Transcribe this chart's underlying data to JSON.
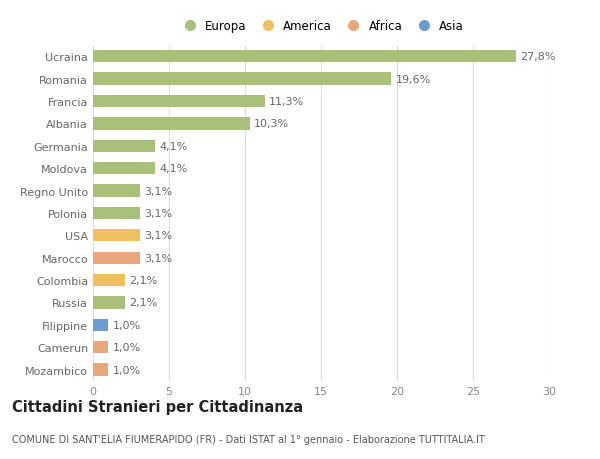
{
  "categories": [
    "Mozambico",
    "Camerun",
    "Filippine",
    "Russia",
    "Colombia",
    "Marocco",
    "USA",
    "Polonia",
    "Regno Unito",
    "Moldova",
    "Germania",
    "Albania",
    "Francia",
    "Romania",
    "Ucraina"
  ],
  "values": [
    1.0,
    1.0,
    1.0,
    2.1,
    2.1,
    3.1,
    3.1,
    3.1,
    3.1,
    4.1,
    4.1,
    10.3,
    11.3,
    19.6,
    27.8
  ],
  "labels": [
    "1,0%",
    "1,0%",
    "1,0%",
    "2,1%",
    "2,1%",
    "3,1%",
    "3,1%",
    "3,1%",
    "3,1%",
    "4,1%",
    "4,1%",
    "10,3%",
    "11,3%",
    "19,6%",
    "27,8%"
  ],
  "colors": [
    "#e8a87c",
    "#e8a87c",
    "#6b9bd2",
    "#a8c07a",
    "#f0c060",
    "#e8a87c",
    "#f0c060",
    "#a8c07a",
    "#a8c07a",
    "#a8c07a",
    "#a8c07a",
    "#a8c07a",
    "#a8c07a",
    "#a8c07a",
    "#a8c07a"
  ],
  "legend_labels": [
    "Europa",
    "America",
    "Africa",
    "Asia"
  ],
  "legend_colors": [
    "#a8c07a",
    "#f0c060",
    "#e8a87c",
    "#6b9bd2"
  ],
  "title": "Cittadini Stranieri per Cittadinanza",
  "subtitle": "COMUNE DI SANT'ELIA FIUMERAPIDO (FR) - Dati ISTAT al 1° gennaio - Elaborazione TUTTITALIA.IT",
  "xlim": [
    0,
    30
  ],
  "xticks": [
    0,
    5,
    10,
    15,
    20,
    25,
    30
  ],
  "background_color": "#ffffff",
  "bar_height": 0.55,
  "label_fontsize": 8,
  "tick_fontsize": 8,
  "title_fontsize": 10.5,
  "subtitle_fontsize": 7,
  "grid_color": "#dddddd"
}
